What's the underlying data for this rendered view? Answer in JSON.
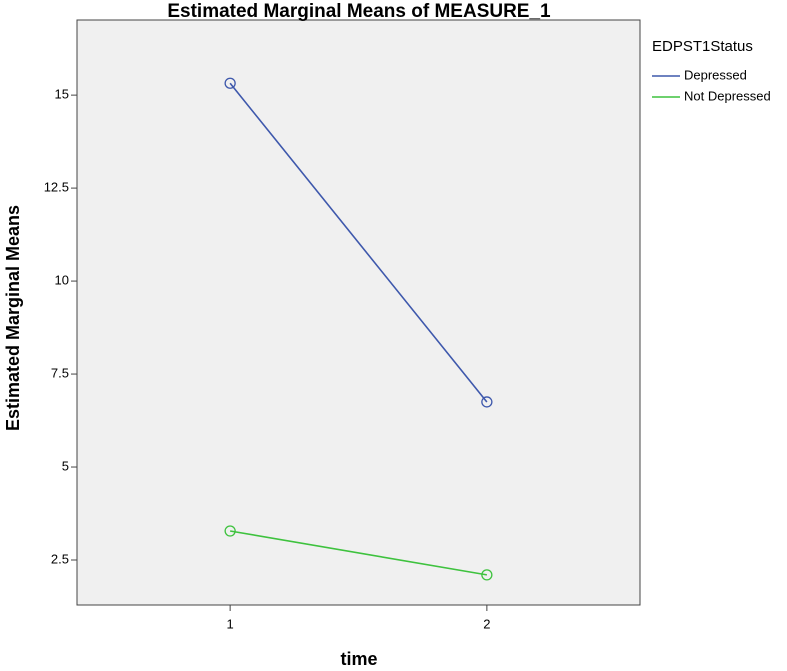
{
  "chart_data": {
    "type": "line",
    "title": "Estimated Marginal Means of MEASURE_1",
    "x_label": "time",
    "y_label": "Estimated Marginal Means",
    "legend_title": "EDPST1Status",
    "legend_position": "right",
    "categories": [
      "1",
      "2"
    ],
    "series": [
      {
        "name": "Depressed",
        "color": "#3e58ac",
        "values": [
          15.32,
          6.75
        ]
      },
      {
        "name": "Not Depressed",
        "color": "#3ec23e",
        "values": [
          3.28,
          2.1
        ]
      }
    ],
    "ylim": [
      1.29,
      17.02
    ],
    "yticks": [
      2.5,
      5,
      7.5,
      10,
      12.5,
      15
    ],
    "grid": false
  }
}
